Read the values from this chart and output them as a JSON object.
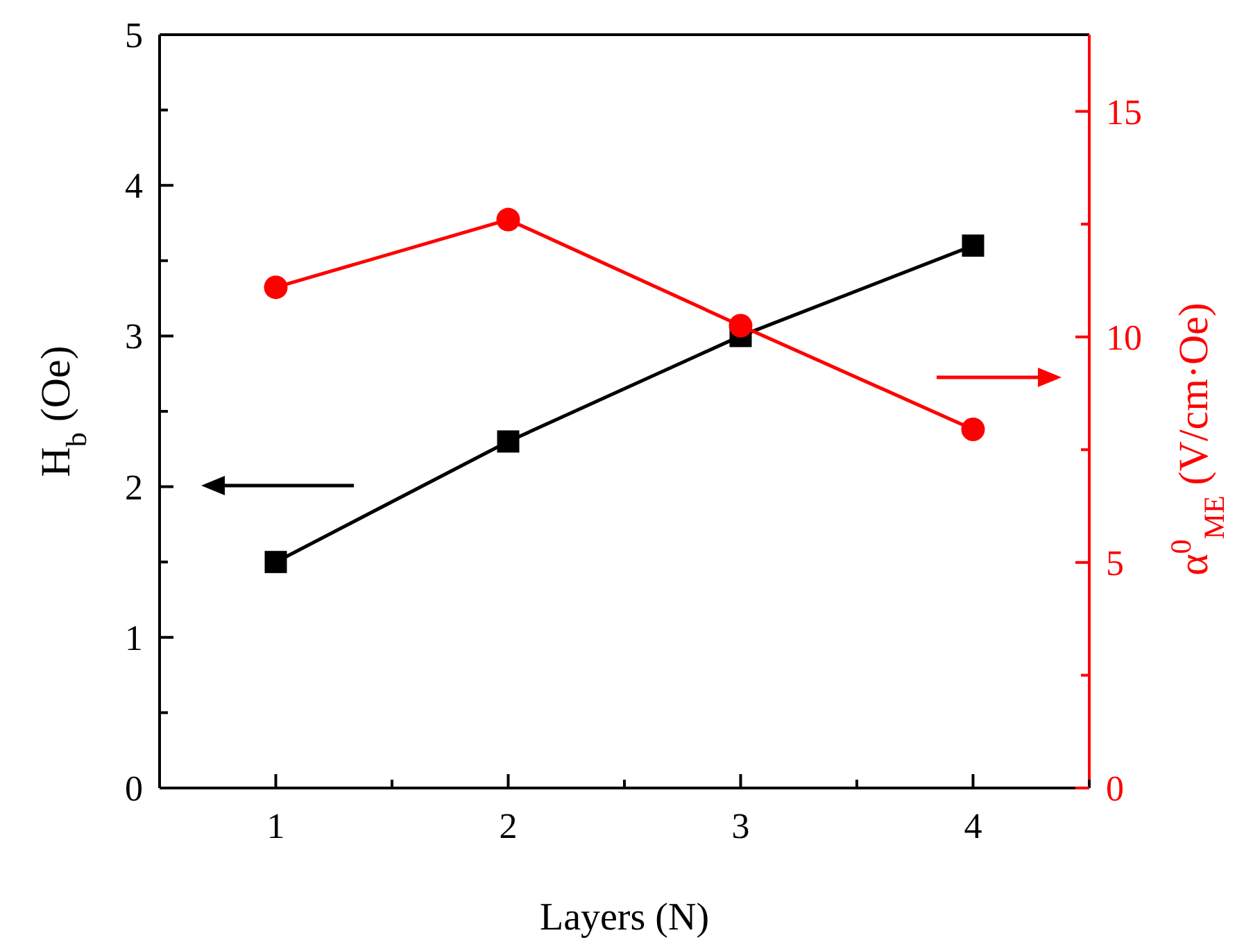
{
  "chart_data": {
    "type": "line",
    "xlabel": "Layers (N)",
    "ylabel": "H$_{b}$ (Oe)",
    "y2label": "α$^{0}$$_{ME}$ (V/cm·Oe)",
    "x": [
      1,
      2,
      3,
      4
    ],
    "xlim": [
      0.5,
      4.5
    ],
    "xticks": [
      {
        "value": 0.5,
        "label": null
      },
      1,
      {
        "value": 1.5,
        "label": null
      },
      2,
      {
        "value": 2.5,
        "label": null
      },
      3,
      {
        "value": 3.5,
        "label": null
      },
      4,
      {
        "value": 4.5,
        "label": null
      }
    ],
    "ylim": [
      0,
      5
    ],
    "yticks": [
      0,
      {
        "value": 0.5,
        "label": null
      },
      1,
      {
        "value": 1.5,
        "label": null
      },
      2,
      {
        "value": 2.5,
        "label": null
      },
      3,
      {
        "value": 3.5,
        "label": null
      },
      4,
      {
        "value": 4.5,
        "label": null
      },
      5
    ],
    "y2lim": [
      0,
      16.7
    ],
    "y2ticks": [
      0,
      {
        "value": 2.5,
        "label": null
      },
      5,
      {
        "value": 7.5,
        "label": null
      },
      10,
      {
        "value": 12.5,
        "label": null
      },
      15
    ],
    "grid": false,
    "line_style": "solid",
    "series": [
      {
        "color": "#000000",
        "marker": "square",
        "values": [
          1.5,
          2.3,
          3.0,
          3.6
        ]
      },
      {
        "color": "#ff0000",
        "marker": "circle",
        "axis": "y2",
        "values": [
          11.1,
          12.6,
          10.25,
          7.95
        ]
      }
    ]
  }
}
